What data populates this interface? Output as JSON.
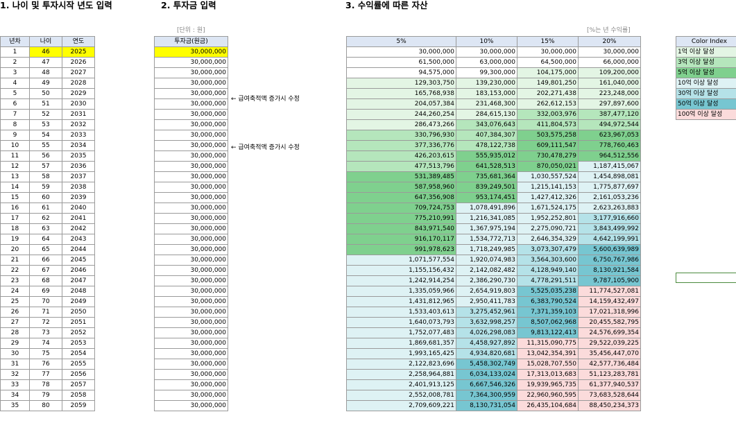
{
  "titles": {
    "section1": "1. 나이 및 투자시작 년도 입력",
    "section2": "2. 투자금 입력",
    "section3": "3. 수익률에 따른 자산"
  },
  "notes": {
    "unit": "[단위 : 원]",
    "rate": "[%는 년 수익률]"
  },
  "table1": {
    "headers": [
      "년차",
      "나이",
      "연도"
    ],
    "rows": [
      [
        "1",
        "46",
        "2025"
      ],
      [
        "2",
        "47",
        "2026"
      ],
      [
        "3",
        "48",
        "2027"
      ],
      [
        "4",
        "49",
        "2028"
      ],
      [
        "5",
        "50",
        "2029"
      ],
      [
        "6",
        "51",
        "2030"
      ],
      [
        "7",
        "52",
        "2031"
      ],
      [
        "8",
        "53",
        "2032"
      ],
      [
        "9",
        "54",
        "2033"
      ],
      [
        "10",
        "55",
        "2034"
      ],
      [
        "11",
        "56",
        "2035"
      ],
      [
        "12",
        "57",
        "2036"
      ],
      [
        "13",
        "58",
        "2037"
      ],
      [
        "14",
        "59",
        "2038"
      ],
      [
        "15",
        "60",
        "2039"
      ],
      [
        "16",
        "61",
        "2040"
      ],
      [
        "17",
        "62",
        "2041"
      ],
      [
        "18",
        "63",
        "2042"
      ],
      [
        "19",
        "64",
        "2043"
      ],
      [
        "20",
        "65",
        "2044"
      ],
      [
        "21",
        "66",
        "2045"
      ],
      [
        "22",
        "67",
        "2046"
      ],
      [
        "23",
        "68",
        "2047"
      ],
      [
        "24",
        "69",
        "2048"
      ],
      [
        "25",
        "70",
        "2049"
      ],
      [
        "26",
        "71",
        "2050"
      ],
      [
        "27",
        "72",
        "2051"
      ],
      [
        "28",
        "73",
        "2052"
      ],
      [
        "29",
        "74",
        "2053"
      ],
      [
        "30",
        "75",
        "2054"
      ],
      [
        "31",
        "76",
        "2055"
      ],
      [
        "32",
        "77",
        "2056"
      ],
      [
        "33",
        "78",
        "2057"
      ],
      [
        "34",
        "79",
        "2058"
      ],
      [
        "35",
        "80",
        "2059"
      ]
    ]
  },
  "table2": {
    "header": "투자금(원금)",
    "value": "30,000,000",
    "count": 35
  },
  "annotations": [
    {
      "row": 6,
      "text": "← 급여축적액 증가시 수정"
    },
    {
      "row": 11,
      "text": "← 급여축적액 증가시 수정"
    }
  ],
  "table3": {
    "headers": [
      "5%",
      "10%",
      "15%",
      "20%"
    ],
    "rows": [
      [
        "30,000,000",
        "30,000,000",
        "30,000,000",
        "30,000,000"
      ],
      [
        "61,500,000",
        "63,000,000",
        "64,500,000",
        "66,000,000"
      ],
      [
        "94,575,000",
        "99,300,000",
        "104,175,000",
        "109,200,000"
      ],
      [
        "129,303,750",
        "139,230,000",
        "149,801,250",
        "161,040,000"
      ],
      [
        "165,768,938",
        "183,153,000",
        "202,271,438",
        "223,248,000"
      ],
      [
        "204,057,384",
        "231,468,300",
        "262,612,153",
        "297,897,600"
      ],
      [
        "244,260,254",
        "284,615,130",
        "332,003,976",
        "387,477,120"
      ],
      [
        "286,473,266",
        "343,076,643",
        "411,804,573",
        "494,972,544"
      ],
      [
        "330,796,930",
        "407,384,307",
        "503,575,258",
        "623,967,053"
      ],
      [
        "377,336,776",
        "478,122,738",
        "609,111,547",
        "778,760,463"
      ],
      [
        "426,203,615",
        "555,935,012",
        "730,478,279",
        "964,512,556"
      ],
      [
        "477,513,796",
        "641,528,513",
        "870,050,021",
        "1,187,415,067"
      ],
      [
        "531,389,485",
        "735,681,364",
        "1,030,557,524",
        "1,454,898,081"
      ],
      [
        "587,958,960",
        "839,249,501",
        "1,215,141,153",
        "1,775,877,697"
      ],
      [
        "647,356,908",
        "953,174,451",
        "1,427,412,326",
        "2,161,053,236"
      ],
      [
        "709,724,753",
        "1,078,491,896",
        "1,671,524,175",
        "2,623,263,883"
      ],
      [
        "775,210,991",
        "1,216,341,085",
        "1,952,252,801",
        "3,177,916,660"
      ],
      [
        "843,971,540",
        "1,367,975,194",
        "2,275,090,721",
        "3,843,499,992"
      ],
      [
        "916,170,117",
        "1,534,772,713",
        "2,646,354,329",
        "4,642,199,991"
      ],
      [
        "991,978,623",
        "1,718,249,985",
        "3,073,307,479",
        "5,600,639,989"
      ],
      [
        "1,071,577,554",
        "1,920,074,983",
        "3,564,303,600",
        "6,750,767,986"
      ],
      [
        "1,155,156,432",
        "2,142,082,482",
        "4,128,949,140",
        "8,130,921,584"
      ],
      [
        "1,242,914,254",
        "2,386,290,730",
        "4,778,291,511",
        "9,787,105,900"
      ],
      [
        "1,335,059,966",
        "2,654,919,803",
        "5,525,035,238",
        "11,774,527,081"
      ],
      [
        "1,431,812,965",
        "2,950,411,783",
        "6,383,790,524",
        "14,159,432,497"
      ],
      [
        "1,533,403,613",
        "3,275,452,961",
        "7,371,359,103",
        "17,021,318,996"
      ],
      [
        "1,640,073,793",
        "3,632,998,257",
        "8,507,062,968",
        "20,455,582,795"
      ],
      [
        "1,752,077,483",
        "4,026,298,083",
        "9,813,122,413",
        "24,576,699,354"
      ],
      [
        "1,869,681,357",
        "4,458,927,892",
        "11,315,090,775",
        "29,522,039,225"
      ],
      [
        "1,993,165,425",
        "4,934,820,681",
        "13,042,354,391",
        "35,456,447,070"
      ],
      [
        "2,122,823,696",
        "5,458,302,749",
        "15,028,707,550",
        "42,577,736,484"
      ],
      [
        "2,258,964,881",
        "6,034,133,024",
        "17,313,013,683",
        "51,123,283,781"
      ],
      [
        "2,401,913,125",
        "6,667,546,326",
        "19,939,965,735",
        "61,377,940,537"
      ],
      [
        "2,552,008,781",
        "7,364,300,959",
        "22,960,960,595",
        "73,683,528,644"
      ],
      [
        "2,709,609,221",
        "8,130,731,054",
        "26,435,104,684",
        "88,450,234,373"
      ]
    ]
  },
  "color_index": {
    "header": "Color Index",
    "items": [
      {
        "label": "1억 이상 달성",
        "color": "#e3f5e4"
      },
      {
        "label": "3억 이상 달성",
        "color": "#b5e6bc"
      },
      {
        "label": "5억 이상 달성",
        "color": "#7fd08e"
      },
      {
        "label": "10억 이상 달성",
        "color": "#def2f4"
      },
      {
        "label": "30억 이상 달성",
        "color": "#b5e2e8"
      },
      {
        "label": "50억 이상 달성",
        "color": "#77c6d1"
      },
      {
        "label": "100억 이상 달성",
        "color": "#fbdbdb"
      }
    ]
  },
  "colors": {
    "header_bg": "#dde6f4",
    "highlight": "#ffff00",
    "selected_cell_border": "#4a8a3c"
  }
}
